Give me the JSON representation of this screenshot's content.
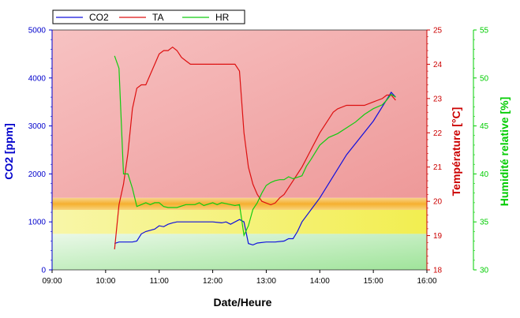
{
  "chart_data": {
    "type": "line",
    "xlabel": "Date/Heure",
    "x_ticks": [
      "09:00",
      "10:00",
      "11:00",
      "12:00",
      "13:00",
      "14:00",
      "15:00",
      "16:00"
    ],
    "xlim": [
      "09:00",
      "16:00"
    ],
    "y_axes": [
      {
        "id": "co2",
        "label": "CO2 [ppm]",
        "side": "left",
        "color": "#0000cc",
        "lim": [
          0,
          5000
        ],
        "ticks": [
          "0",
          "1000",
          "2000",
          "3000",
          "4000",
          "5000"
        ]
      },
      {
        "id": "ta",
        "label": "Température [°C]",
        "side": "right",
        "color": "#cc0000",
        "lim": [
          18,
          25
        ],
        "ticks": [
          "18",
          "19",
          "20",
          "21",
          "22",
          "23",
          "24",
          "25"
        ]
      },
      {
        "id": "hr",
        "label": "Humidité relative [%]",
        "side": "right",
        "color": "#00cc00",
        "lim": [
          30,
          55
        ],
        "ticks": [
          "30",
          "35",
          "40",
          "45",
          "50",
          "55"
        ]
      }
    ],
    "legend": {
      "placement": "top-left",
      "entries": [
        "CO2",
        "TA",
        "HR"
      ]
    },
    "zones": [
      {
        "axis": "co2",
        "range": [
          1500,
          5000
        ],
        "color": "#f2a8a8"
      },
      {
        "axis": "co2",
        "range": [
          1250,
          1500
        ],
        "color": "#f9c050"
      },
      {
        "axis": "co2",
        "range": [
          750,
          1250
        ],
        "color": "#f7f070"
      },
      {
        "axis": "co2",
        "range": [
          0,
          750
        ],
        "color": "#c8f0c4"
      }
    ],
    "series": [
      {
        "name": "CO2",
        "axis": "co2",
        "color": "#1010dd",
        "x": [
          "10:10",
          "10:15",
          "10:30",
          "10:35",
          "10:40",
          "10:45",
          "10:55",
          "11:00",
          "11:05",
          "11:10",
          "11:15",
          "11:20",
          "11:30",
          "11:45",
          "12:00",
          "12:10",
          "12:15",
          "12:20",
          "12:30",
          "12:35",
          "12:40",
          "12:45",
          "12:50",
          "13:00",
          "13:10",
          "13:20",
          "13:25",
          "13:30",
          "13:35",
          "13:40",
          "14:00",
          "14:30",
          "15:00",
          "15:15",
          "15:20",
          "15:25"
        ],
        "values": [
          550,
          580,
          580,
          600,
          750,
          800,
          850,
          920,
          900,
          950,
          980,
          1000,
          1000,
          1000,
          1000,
          980,
          1000,
          950,
          1050,
          1000,
          550,
          520,
          560,
          580,
          580,
          600,
          650,
          650,
          800,
          1000,
          1500,
          2400,
          3100,
          3550,
          3700,
          3600
        ]
      },
      {
        "name": "TA",
        "axis": "ta",
        "color": "#dd1010",
        "x": [
          "10:10",
          "10:15",
          "10:20",
          "10:25",
          "10:30",
          "10:35",
          "10:40",
          "10:45",
          "10:50",
          "10:55",
          "11:00",
          "11:05",
          "11:10",
          "11:15",
          "11:20",
          "11:25",
          "11:30",
          "11:35",
          "11:40",
          "11:45",
          "12:00",
          "12:15",
          "12:25",
          "12:30",
          "12:35",
          "12:40",
          "12:45",
          "12:50",
          "12:55",
          "13:00",
          "13:05",
          "13:10",
          "13:15",
          "13:20",
          "13:30",
          "13:40",
          "13:50",
          "14:00",
          "14:10",
          "14:15",
          "14:20",
          "14:30",
          "14:40",
          "14:50",
          "15:00",
          "15:05",
          "15:10",
          "15:15",
          "15:20",
          "15:25"
        ],
        "values": [
          18.6,
          19.9,
          20.5,
          21.4,
          22.7,
          23.3,
          23.4,
          23.4,
          23.7,
          24.0,
          24.3,
          24.4,
          24.4,
          24.5,
          24.4,
          24.2,
          24.1,
          24.0,
          24.0,
          24.0,
          24.0,
          24.0,
          24.0,
          23.8,
          22.0,
          21.0,
          20.5,
          20.2,
          20.0,
          19.95,
          19.9,
          19.95,
          20.1,
          20.2,
          20.6,
          21.0,
          21.5,
          22.0,
          22.4,
          22.6,
          22.7,
          22.8,
          22.8,
          22.8,
          22.9,
          22.95,
          23.0,
          23.1,
          23.1,
          22.95
        ]
      },
      {
        "name": "HR",
        "axis": "hr",
        "color": "#10cc10",
        "x": [
          "10:10",
          "10:15",
          "10:20",
          "10:25",
          "10:30",
          "10:35",
          "10:40",
          "10:45",
          "10:50",
          "10:55",
          "11:00",
          "11:05",
          "11:10",
          "11:15",
          "11:20",
          "11:30",
          "11:40",
          "11:45",
          "11:50",
          "12:00",
          "12:05",
          "12:10",
          "12:20",
          "12:25",
          "12:30",
          "12:35",
          "12:40",
          "12:45",
          "12:50",
          "12:55",
          "13:00",
          "13:05",
          "13:10",
          "13:15",
          "13:20",
          "13:25",
          "13:30",
          "13:40",
          "13:45",
          "13:50",
          "14:00",
          "14:10",
          "14:20",
          "14:30",
          "14:40",
          "14:50",
          "15:00",
          "15:10",
          "15:15",
          "15:20",
          "15:25"
        ],
        "values": [
          52.3,
          51.0,
          40.0,
          40.0,
          38.5,
          36.6,
          36.8,
          37.0,
          36.8,
          37.0,
          37.0,
          36.6,
          36.5,
          36.5,
          36.5,
          36.8,
          36.8,
          37.0,
          36.7,
          37.0,
          36.8,
          37.0,
          36.8,
          36.7,
          36.8,
          33.6,
          34.6,
          36.3,
          37.0,
          38.0,
          38.8,
          39.1,
          39.3,
          39.4,
          39.4,
          39.7,
          39.5,
          39.8,
          40.8,
          41.5,
          43.0,
          43.8,
          44.2,
          44.8,
          45.4,
          46.2,
          46.8,
          47.2,
          47.7,
          48.3,
          48.0
        ]
      }
    ]
  }
}
